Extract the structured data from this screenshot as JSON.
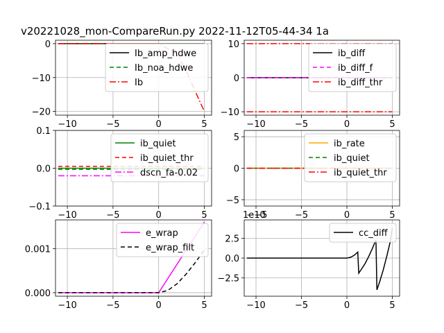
{
  "figure": {
    "title": "v20221028_mon-CompareRun.py   2022-11-12T05-44-34 1a"
  },
  "chart_data": [
    {
      "type": "line",
      "xlim": [
        -11.3,
        5.8
      ],
      "ylim": [
        -21.1,
        1.0
      ],
      "xticks": [
        -10,
        -5,
        0,
        5
      ],
      "xtick_labels": [
        "−10",
        "−5",
        "0",
        "5"
      ],
      "yticks": [
        0,
        -10,
        -20
      ],
      "ytick_labels": [
        "0",
        "−10",
        "−20"
      ],
      "grid": true,
      "legend_position": "top-right",
      "series": [
        {
          "name": "Ib_amp_hdwe",
          "color": "#000000",
          "dash": "solid",
          "x": [
            -11,
            5
          ],
          "y": [
            0,
            0
          ]
        },
        {
          "name": "Ib_noa_hdwe",
          "color": "#008000",
          "dash": "dashed",
          "x": [
            -11,
            5
          ],
          "y": [
            0,
            0
          ]
        },
        {
          "name": "Ib",
          "color": "#ff0000",
          "dash": "dashdot",
          "x": [
            -11,
            0,
            2,
            3,
            4,
            5
          ],
          "y": [
            0,
            0,
            -3,
            -8,
            -14,
            -20
          ]
        }
      ]
    },
    {
      "type": "line",
      "xlim": [
        -11.3,
        5.8
      ],
      "ylim": [
        -11.0,
        11.0
      ],
      "xticks": [
        -10,
        -5,
        0,
        5
      ],
      "xtick_labels": [
        "−10",
        "−5",
        "0",
        "5"
      ],
      "yticks": [
        10,
        0,
        -10
      ],
      "ytick_labels": [
        "10",
        "0",
        "−10"
      ],
      "grid": true,
      "legend_position": "top-right",
      "series": [
        {
          "name": "ib_diff",
          "color": "#000000",
          "dash": "solid",
          "x": [
            -11,
            5
          ],
          "y": [
            0,
            0
          ]
        },
        {
          "name": "ib_diff_f",
          "color": "#ff00ff",
          "dash": "dashed",
          "x": [
            -11,
            5
          ],
          "y": [
            0,
            0
          ]
        },
        {
          "name": "ib_diff_thr",
          "color": "#ff0000",
          "dash": "dashdot",
          "x": [
            -11,
            5
          ],
          "y": [
            10,
            10
          ]
        },
        {
          "name": "",
          "color": "#ff0000",
          "dash": "dashdot",
          "x": [
            -11,
            5
          ],
          "y": [
            -10,
            -10
          ]
        }
      ]
    },
    {
      "type": "line",
      "xlim": [
        -11.3,
        5.8
      ],
      "ylim": [
        -0.1,
        0.1
      ],
      "xticks": [
        -10,
        -5,
        0,
        5
      ],
      "xtick_labels": [
        "−10",
        "−5",
        "0",
        "5"
      ],
      "yticks": [
        0.1,
        0.0,
        -0.1
      ],
      "ytick_labels": [
        "0.1",
        "0.0",
        "−0.1"
      ],
      "grid": true,
      "legend_position": "top-right",
      "series": [
        {
          "name": "ib_quiet",
          "color": "#008000",
          "dash": "solid",
          "x": [
            -11,
            5
          ],
          "y": [
            0,
            0
          ]
        },
        {
          "name": "ib_quiet_thr",
          "color": "#ff0000",
          "dash": "dashed",
          "x": [
            -11,
            5
          ],
          "y": [
            0.005,
            0.005
          ]
        },
        {
          "name": "",
          "color": "#008000",
          "dash": "dashed",
          "x": [
            -11,
            5
          ],
          "y": [
            -0.003,
            -0.003
          ]
        },
        {
          "name": "dscn_fa-0.02",
          "color": "#ff00ff",
          "dash": "dashdot",
          "x": [
            -11,
            5
          ],
          "y": [
            -0.02,
            -0.02
          ]
        }
      ]
    },
    {
      "type": "line",
      "xlim": [
        -11.3,
        5.8
      ],
      "ylim": [
        -6.0,
        6.0
      ],
      "xticks": [
        -10,
        -5,
        0,
        5
      ],
      "xtick_labels": [
        "−10",
        "−5",
        "0",
        "5"
      ],
      "yticks": [
        5,
        0,
        -5
      ],
      "ytick_labels": [
        "5",
        "0",
        "−5"
      ],
      "grid": true,
      "legend_position": "top-right",
      "series": [
        {
          "name": "ib_rate",
          "color": "#ffa500",
          "dash": "solid",
          "x": [
            -11,
            5
          ],
          "y": [
            0,
            0
          ]
        },
        {
          "name": "ib_quiet",
          "color": "#008000",
          "dash": "dashed",
          "x": [
            -11,
            5
          ],
          "y": [
            0,
            0
          ]
        },
        {
          "name": "ib_quiet_thr",
          "color": "#ff0000",
          "dash": "dashdot",
          "x": [
            -11,
            5
          ],
          "y": [
            0,
            0
          ]
        }
      ]
    },
    {
      "type": "line",
      "xlim": [
        -11.3,
        5.8
      ],
      "ylim": [
        -8e-05,
        0.00165
      ],
      "xticks": [
        -10,
        -5,
        0,
        5
      ],
      "xtick_labels": [
        "−10",
        "−5",
        "0",
        "5"
      ],
      "yticks": [
        0.001,
        0.0
      ],
      "ytick_labels": [
        "0.001",
        "0.000"
      ],
      "grid": true,
      "legend_position": "top-right",
      "series": [
        {
          "name": "e_wrap",
          "color": "#ff00ff",
          "dash": "solid",
          "x": [
            -11,
            0,
            5
          ],
          "y": [
            0,
            0,
            0.0016
          ]
        },
        {
          "name": "e_wrap_filt",
          "color": "#000000",
          "dash": "dashed",
          "x": [
            -11,
            0,
            1,
            2,
            3,
            4,
            5
          ],
          "y": [
            0,
            0,
            5e-05,
            0.0002,
            0.00042,
            0.00068,
            0.00097
          ]
        }
      ]
    },
    {
      "type": "line",
      "xlim": [
        -11.3,
        5.8
      ],
      "ylim": [
        -4.8e-05,
        4.8e-05
      ],
      "xticks": [
        -10,
        -5,
        0,
        5
      ],
      "xtick_labels": [
        "−10",
        "−5",
        "0",
        "5"
      ],
      "yticks": [
        2.5e-05,
        0,
        -2.5e-05
      ],
      "ytick_labels": [
        "2.5",
        "0.0",
        "−2.5"
      ],
      "offset_label": "1e−5",
      "grid": true,
      "legend_position": "top-right",
      "series": [
        {
          "name": "cc_diff",
          "color": "#000000",
          "dash": "solid",
          "x": [
            -11,
            0,
            0.4,
            0.8,
            1.2,
            1.3,
            1.6,
            2.0,
            2.4,
            2.8,
            3.2,
            3.3,
            3.6,
            4.0,
            4.4,
            4.8,
            5.0
          ],
          "y": [
            0,
            0,
            1e-06,
            3.5e-06,
            7.5e-06,
            -1.9e-05,
            -1.4e-05,
            -7e-06,
            2e-06,
            1.2e-05,
            2.3e-05,
            -4e-05,
            -3e-05,
            -1.5e-05,
            3e-06,
            2.2e-05,
            3.8e-05
          ]
        }
      ]
    }
  ]
}
